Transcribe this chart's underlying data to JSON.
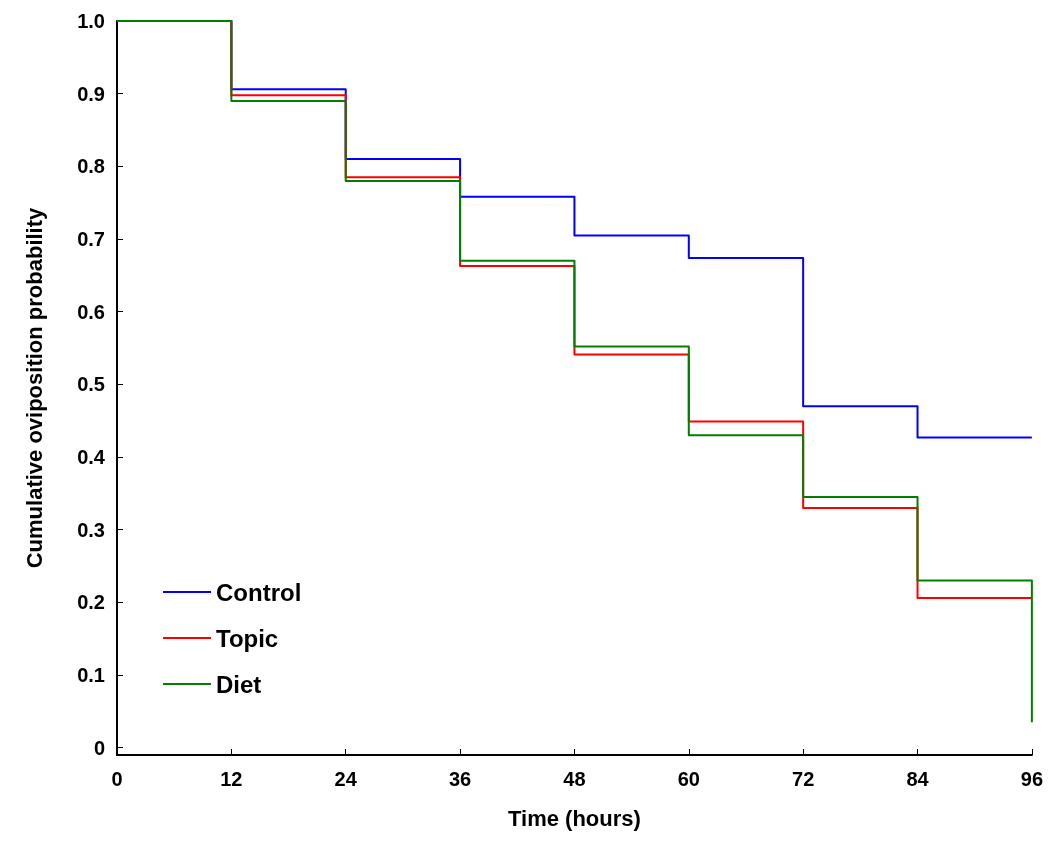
{
  "chart_data": {
    "type": "step",
    "xlabel": "Time (hours)",
    "ylabel": "Cumulative oviposition probability",
    "x": [
      0,
      12,
      24,
      36,
      48,
      60,
      72,
      84,
      96
    ],
    "series": [
      {
        "name": "Control",
        "color": "#0000ff",
        "values": [
          1,
          0.906,
          0.81,
          0.758,
          0.705,
          0.674,
          0.47,
          0.427,
          0.427
        ]
      },
      {
        "name": "Topic",
        "color": "#ff0000",
        "values": [
          1,
          0.898,
          0.785,
          0.663,
          0.541,
          0.449,
          0.33,
          0.206,
          0.206
        ]
      },
      {
        "name": "Diet",
        "color": "#008000",
        "values": [
          1,
          0.89,
          0.78,
          0.67,
          0.552,
          0.43,
          0.345,
          0.23,
          0.035
        ]
      }
    ],
    "xlim": [
      0,
      96
    ],
    "xticks": [
      0,
      12,
      24,
      36,
      48,
      60,
      72,
      84,
      96
    ],
    "ylim": [
      -0.01,
      1
    ],
    "yticks": [
      0,
      0.1,
      0.2,
      0.3,
      0.4,
      0.5,
      0.6,
      0.7,
      0.8,
      0.9,
      {
        "value": 1,
        "label": "1.0"
      }
    ],
    "grid": false,
    "legend": "bottom left",
    "marker": "none",
    "line_style": "solid"
  }
}
